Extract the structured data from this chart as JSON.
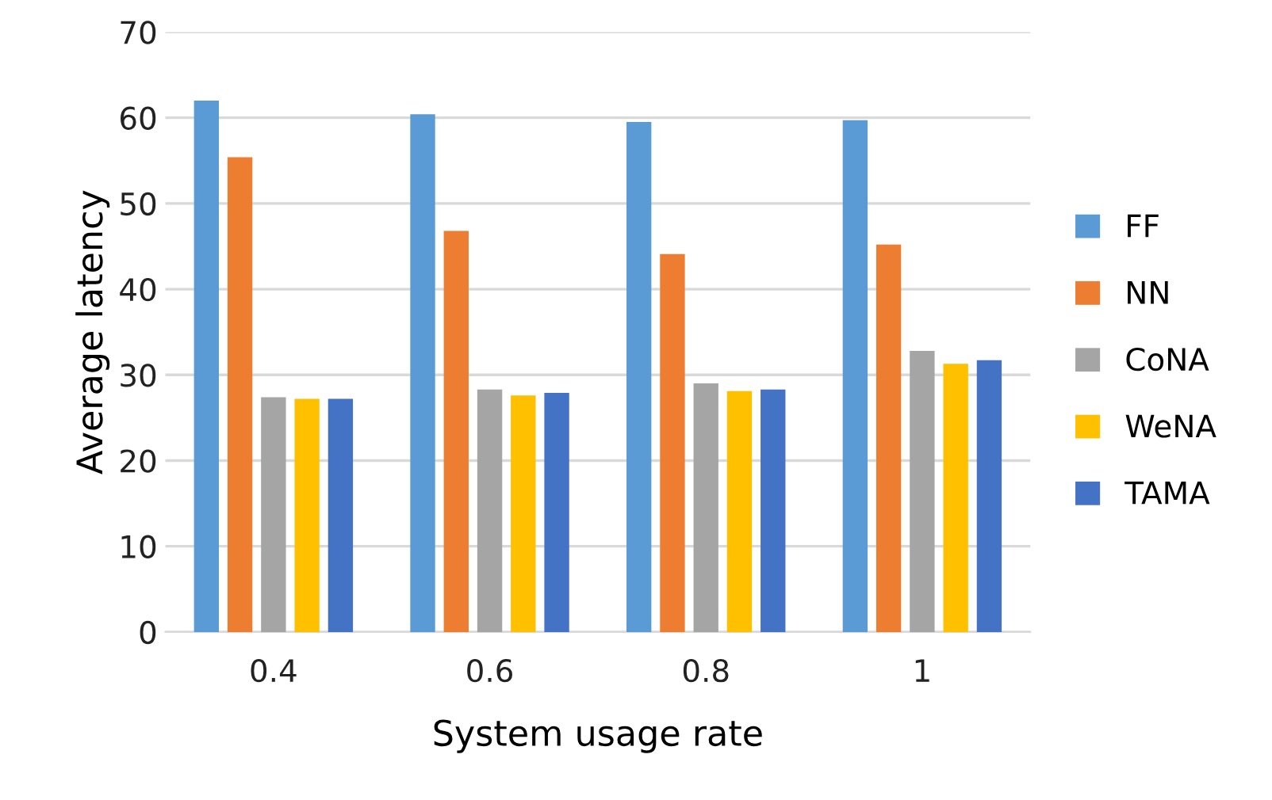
{
  "chart_data": {
    "type": "bar",
    "xlabel": "System usage rate",
    "ylabel": "Average latency",
    "categories": [
      "0.4",
      "0.6",
      "0.8",
      "1"
    ],
    "series": [
      {
        "name": "FF",
        "color": "#5b9bd5",
        "values": [
          62.0,
          60.4,
          59.5,
          59.7
        ]
      },
      {
        "name": "NN",
        "color": "#ed7d31",
        "values": [
          55.4,
          46.8,
          44.1,
          45.2
        ]
      },
      {
        "name": "CoNA",
        "color": "#a5a5a5",
        "values": [
          27.4,
          28.3,
          29.0,
          32.8
        ]
      },
      {
        "name": "WeNA",
        "color": "#ffc000",
        "values": [
          27.2,
          27.6,
          28.1,
          31.3
        ]
      },
      {
        "name": "TAMA",
        "color": "#4472c4",
        "values": [
          27.2,
          27.9,
          28.3,
          31.7
        ]
      }
    ],
    "ylim": [
      0,
      70
    ],
    "yticks": [
      0,
      10,
      20,
      30,
      40,
      50,
      60,
      70
    ],
    "grid": "y",
    "legend": "right"
  }
}
